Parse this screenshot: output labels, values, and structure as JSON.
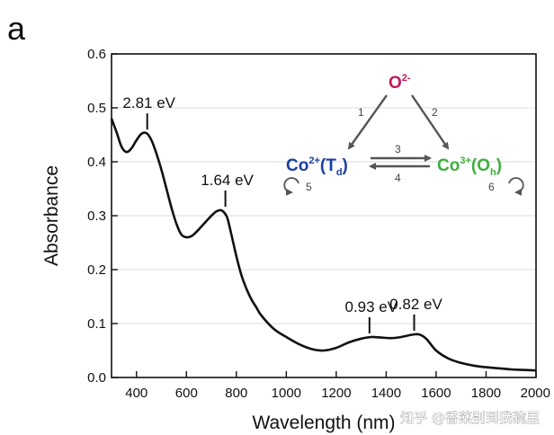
{
  "panel_label": "a",
  "watermark": "知乎 @香菜别到我碗里",
  "colors": {
    "curve": "#111111",
    "frame": "#111111",
    "grid": "#dddddd",
    "oxide": "#c2185b",
    "co2": "#1a3fa0",
    "co3": "#3fae3f",
    "arrow": "#555555"
  },
  "chart_data": {
    "type": "line",
    "title": "",
    "xlabel": "Wavelength (nm)",
    "ylabel": "Absorbance",
    "xlim": [
      300,
      2000
    ],
    "ylim": [
      0.0,
      0.6
    ],
    "xticks": [
      400,
      600,
      800,
      1000,
      1200,
      1400,
      1600,
      1800,
      2000
    ],
    "yticks": [
      0.0,
      0.1,
      0.2,
      0.3,
      0.4,
      0.5,
      0.6
    ],
    "xtick_labels": [
      "400",
      "600",
      "800",
      "1000",
      "1200",
      "1400",
      "1600",
      "1800",
      "2000"
    ],
    "ytick_labels": [
      "0.0",
      "0.1",
      "0.2",
      "0.3",
      "0.4",
      "0.5",
      "0.6"
    ],
    "grid": true,
    "series": [
      {
        "name": "absorbance",
        "x": [
          300,
          320,
          340,
          360,
          380,
          400,
          420,
          440,
          460,
          480,
          500,
          520,
          540,
          560,
          580,
          600,
          620,
          640,
          660,
          680,
          700,
          720,
          740,
          760,
          770,
          780,
          800,
          820,
          840,
          860,
          880,
          900,
          950,
          1000,
          1050,
          1100,
          1150,
          1200,
          1250,
          1300,
          1340,
          1380,
          1420,
          1460,
          1500,
          1530,
          1560,
          1600,
          1650,
          1700,
          1750,
          1800,
          1850,
          1900,
          1950,
          2000
        ],
        "y": [
          0.48,
          0.455,
          0.428,
          0.418,
          0.425,
          0.44,
          0.452,
          0.453,
          0.44,
          0.415,
          0.385,
          0.35,
          0.315,
          0.285,
          0.265,
          0.26,
          0.262,
          0.27,
          0.28,
          0.29,
          0.3,
          0.308,
          0.31,
          0.3,
          0.285,
          0.265,
          0.225,
          0.19,
          0.165,
          0.145,
          0.13,
          0.115,
          0.09,
          0.075,
          0.062,
          0.053,
          0.05,
          0.055,
          0.065,
          0.072,
          0.075,
          0.074,
          0.073,
          0.075,
          0.079,
          0.08,
          0.072,
          0.05,
          0.035,
          0.027,
          0.022,
          0.019,
          0.017,
          0.015,
          0.014,
          0.013
        ]
      }
    ],
    "annotations": [
      {
        "text": "2.81 eV",
        "x": 443,
        "y": 0.453
      },
      {
        "text": "1.64 eV",
        "x": 756,
        "y": 0.31
      },
      {
        "text": "0.93 eV",
        "x": 1333,
        "y": 0.075
      },
      {
        "text": "0.82 eV",
        "x": 1512,
        "y": 0.08
      }
    ],
    "inset_scheme": {
      "oxide": {
        "base": "O",
        "sup": "2-"
      },
      "co2": {
        "base": "Co",
        "sup": "2+",
        "paren_open": "(T",
        "sub": "d",
        "paren_close": ")"
      },
      "co3": {
        "base": "Co",
        "sup": "3+",
        "paren_open": "(O",
        "sub": "h",
        "paren_close": ")"
      },
      "arrow_labels": [
        "1",
        "2",
        "3",
        "4",
        "5",
        "6"
      ]
    }
  }
}
